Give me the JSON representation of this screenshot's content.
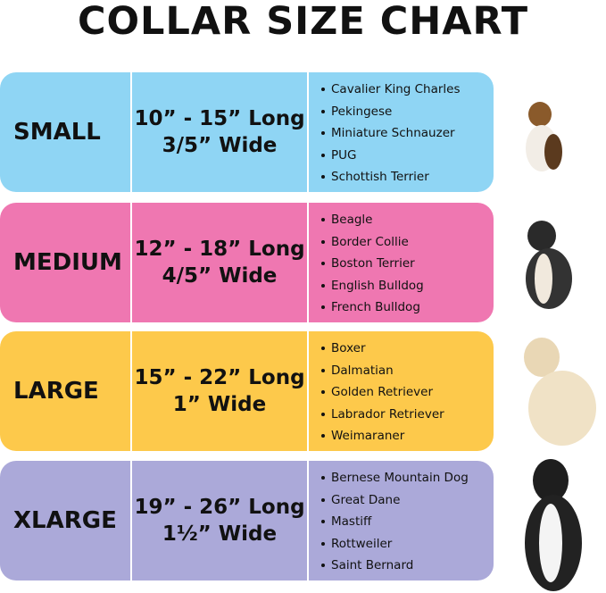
{
  "header": {
    "title": "COLLAR SIZE CHART"
  },
  "rows": [
    {
      "size": "SMALL",
      "length": "10” - 15” Long",
      "width": "3/5” Wide",
      "color": "#8fd5f4",
      "breeds": [
        "Cavalier King Charles",
        "Pekingese",
        "Miniature Schnauzer",
        "PUG",
        "Schottish Terrier"
      ]
    },
    {
      "size": "MEDIUM",
      "length": "12” - 18” Long",
      "width": "4/5” Wide",
      "color": "#ef77b1",
      "breeds": [
        "Beagle",
        "Border Collie",
        "Boston Terrier",
        "English Bulldog",
        "French Bulldog"
      ]
    },
    {
      "size": "LARGE",
      "length": "15” - 22” Long",
      "width": "1” Wide",
      "color": "#fdc94b",
      "breeds": [
        "Boxer",
        "Dalmatian",
        "Golden Retriever",
        "Labrador Retriever",
        "Weimaraner"
      ]
    },
    {
      "size": "XLARGE",
      "length": "19” - 26” Long",
      "width": "1½” Wide",
      "color": "#aba9d9",
      "breeds": [
        "Bernese Mountain Dog",
        "Great Dane",
        "Mastiff",
        "Rottweiler",
        "Saint Bernard"
      ]
    }
  ]
}
